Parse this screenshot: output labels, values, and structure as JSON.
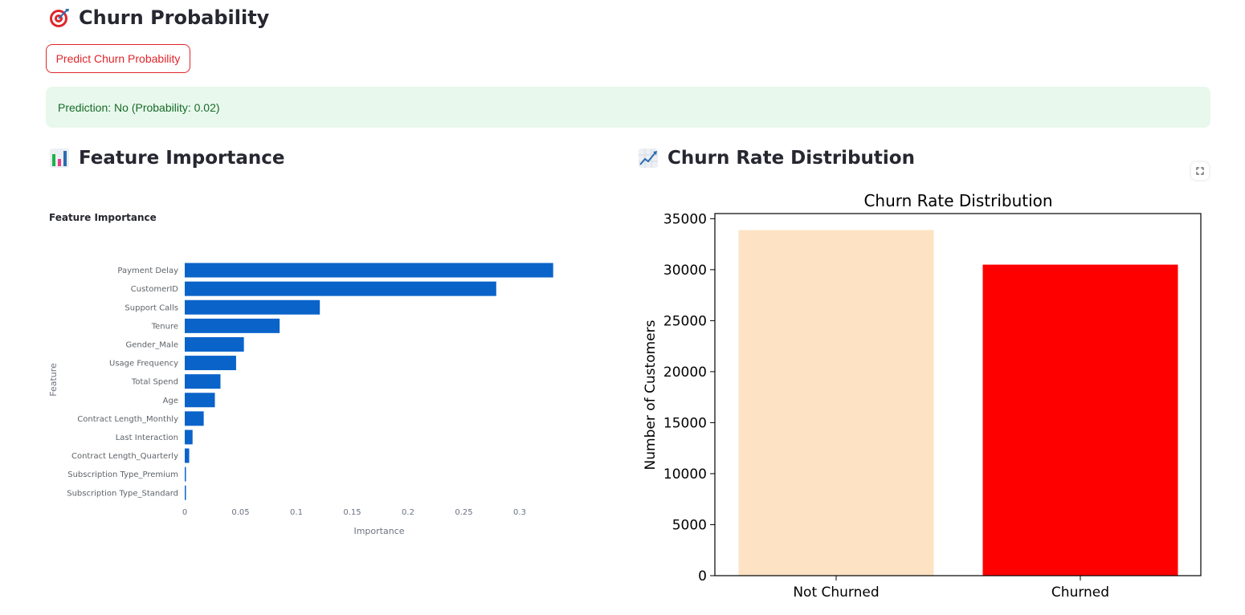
{
  "header": {
    "title": "Churn Probability",
    "icon": "target-icon"
  },
  "predict_button": {
    "label": "Predict Churn Probability"
  },
  "prediction_alert": {
    "text": "Prediction: No (Probability: 0.02)"
  },
  "feature_section": {
    "heading": "Feature Importance",
    "icon": "bar-chart-icon"
  },
  "churn_section": {
    "heading": "Churn Rate Distribution",
    "icon": "trend-chart-icon"
  },
  "colors": {
    "accent": "#e0252a",
    "bar_blue": "#0a63c9",
    "not_churned": "#fde3c3",
    "churned": "#ff0000",
    "success_bg": "#e8f8ec",
    "success_text": "#176b2a"
  },
  "chart_data": [
    {
      "type": "bar",
      "orientation": "horizontal",
      "title": "Feature Importance",
      "xlabel": "Importance",
      "ylabel": "Feature",
      "categories": [
        "Payment Delay",
        "CustomerID",
        "Support Calls",
        "Tenure",
        "Gender_Male",
        "Usage Frequency",
        "Total Spend",
        "Age",
        "Contract Length_Monthly",
        "Last Interaction",
        "Contract Length_Quarterly",
        "Subscription Type_Premium",
        "Subscription Type_Standard"
      ],
      "values": [
        0.33,
        0.279,
        0.121,
        0.085,
        0.053,
        0.046,
        0.032,
        0.027,
        0.017,
        0.007,
        0.004,
        0.001,
        0.001
      ],
      "xlim": [
        0,
        0.34
      ],
      "xticks": [
        0,
        0.05,
        0.1,
        0.15,
        0.2,
        0.25,
        0.3
      ],
      "xtick_labels": [
        "0",
        "0.05",
        "0.1",
        "0.15",
        "0.2",
        "0.25",
        "0.3"
      ],
      "grid": false
    },
    {
      "type": "bar",
      "title": "Churn Rate Distribution",
      "xlabel": "",
      "ylabel": "Number of Customers",
      "categories": [
        "Not Churned",
        "Churned"
      ],
      "values": [
        33881,
        30493
      ],
      "ylim": [
        0,
        35500
      ],
      "yticks": [
        0,
        5000,
        10000,
        15000,
        20000,
        25000,
        30000,
        35000
      ],
      "ytick_labels": [
        "0",
        "5000",
        "10000",
        "15000",
        "20000",
        "25000",
        "30000",
        "35000"
      ],
      "colors": [
        "#fde3c3",
        "#ff0000"
      ],
      "grid": false
    }
  ]
}
